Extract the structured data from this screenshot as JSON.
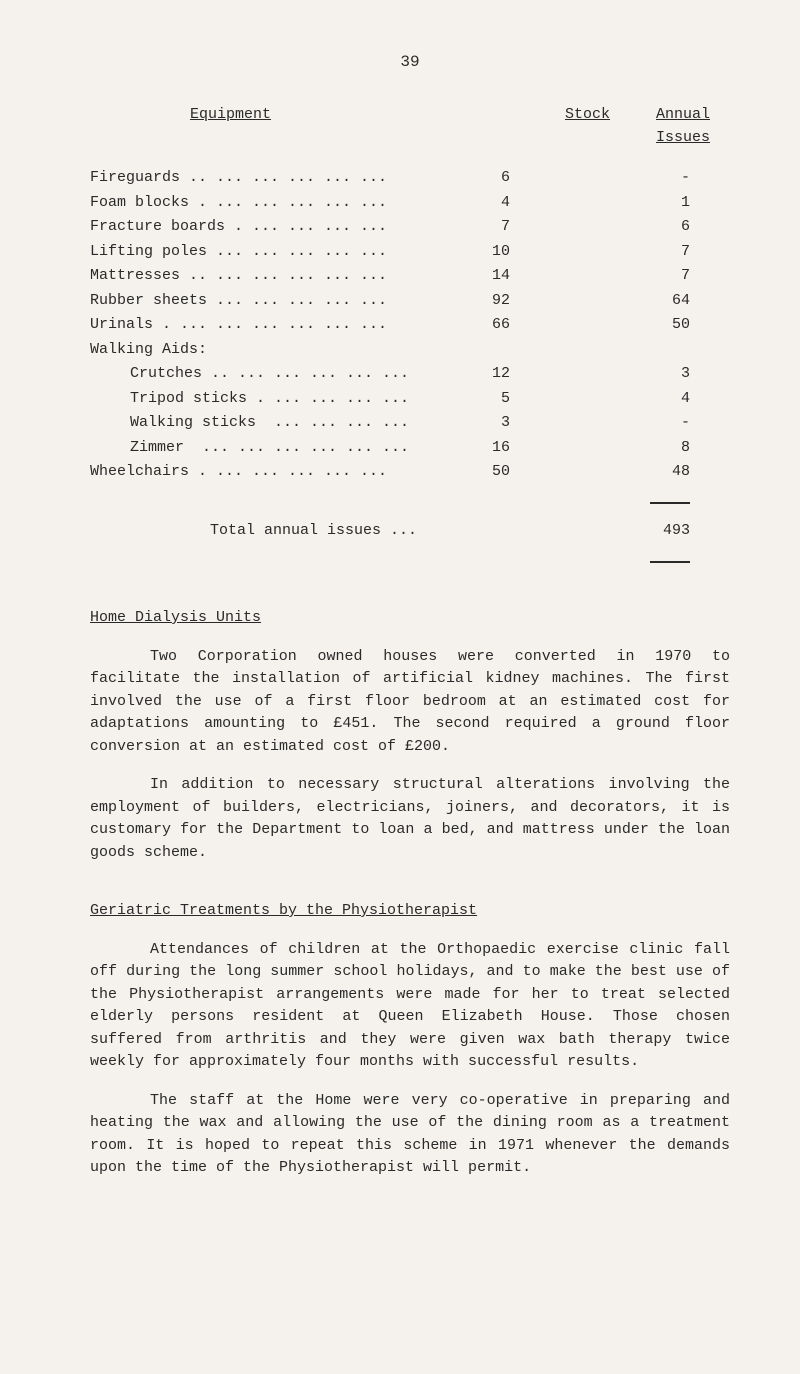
{
  "page_number": "39",
  "table": {
    "headers": {
      "equipment": "Equipment",
      "stock": "Stock",
      "issues": "Annual Issues"
    },
    "rows": [
      {
        "label": "Fireguards .. ... ... ... ... ...",
        "stock": "6",
        "issues": "-"
      },
      {
        "label": "Foam blocks . ... ... ... ... ...",
        "stock": "4",
        "issues": "1"
      },
      {
        "label": "Fracture boards . ... ... ... ...",
        "stock": "7",
        "issues": "6"
      },
      {
        "label": "Lifting poles ... ... ... ... ...",
        "stock": "10",
        "issues": "7"
      },
      {
        "label": "Mattresses .. ... ... ... ... ...",
        "stock": "14",
        "issues": "7"
      },
      {
        "label": "Rubber sheets ... ... ... ... ...",
        "stock": "92",
        "issues": "64"
      },
      {
        "label": "Urinals . ... ... ... ... ... ...",
        "stock": "66",
        "issues": "50"
      }
    ],
    "walking_label": "Walking Aids:",
    "walking_rows": [
      {
        "label": "Crutches .. ... ... ... ... ...",
        "stock": "12",
        "issues": "3"
      },
      {
        "label": "Tripod sticks . ... ... ... ...",
        "stock": "5",
        "issues": "4"
      },
      {
        "label": "Walking sticks  ... ... ... ...",
        "stock": "3",
        "issues": "-"
      },
      {
        "label": "Zimmer  ... ... ... ... ... ...",
        "stock": "16",
        "issues": "8"
      }
    ],
    "wheelchairs": {
      "label": "Wheelchairs . ... ... ... ... ...",
      "stock": "50",
      "issues": "48"
    },
    "total_label": "Total annual issues ...",
    "total_value": "493"
  },
  "sections": {
    "dialysis": {
      "heading": "Home Dialysis Units",
      "p1": "Two Corporation owned houses were converted in 1970 to facilitate the installation of artificial kidney machines. The first involved the use of a first floor bedroom at an estimated cost for adaptations amounting to £451.  The second required a ground floor conversion at an estimated cost of £200.",
      "p2": "In addition to necessary structural alterations involving the employment of builders, electricians, joiners, and decorators, it is customary for the Department to loan a bed, and mattress under the loan goods scheme."
    },
    "geriatric": {
      "heading": "Geriatric Treatments by the Physiotherapist",
      "p1": "Attendances of children at the Orthopaedic exercise clinic fall off during the long summer school holidays, and to make the best use of the Physiotherapist arrangements were made for her to treat selected elderly persons resident at Queen Elizabeth House.  Those chosen suffered from arthritis and they were given wax bath therapy twice weekly for approximately four months with successful results.",
      "p2": "The staff at the Home were very co-operative in preparing and heating the wax and allowing the use of the dining room as a treatment room.  It is hoped to repeat this scheme in 1971 whenever the demands upon the time of the Physiotherapist will permit."
    }
  }
}
